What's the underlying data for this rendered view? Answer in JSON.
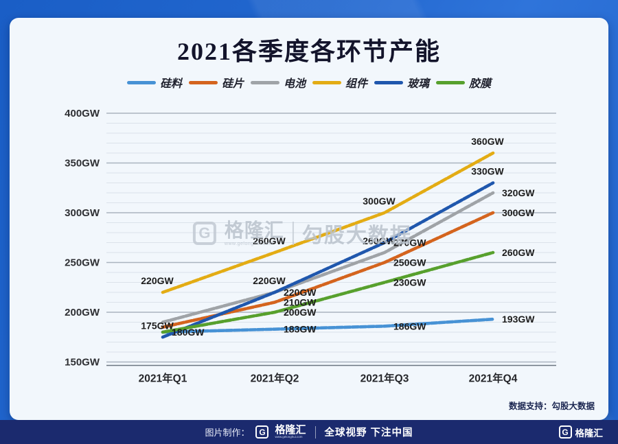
{
  "title": "2021各季度各环节产能",
  "watermark": {
    "logo_letter": "G",
    "brand": "格隆汇",
    "brand_sub": "www.gelonghui.com",
    "right_text": "勾股大数据"
  },
  "data_support": "数据支持：勾股大数据",
  "footer": {
    "made_by": "图片制作：",
    "logo_letter": "G",
    "brand": "格隆汇",
    "brand_sub": "www.gelonghui.com",
    "slogan": "全球视野 下注中国",
    "right_logo_letter": "G",
    "right_brand": "格隆汇"
  },
  "colors": {
    "frame_blue": "#2267cf",
    "card_bg": "#f2f7fc",
    "footer_navy": "#1b2a6e",
    "grid_minor": "#dbe2ea",
    "grid_major": "#a9b3bf",
    "axis_line": "#6a7480",
    "label_text": "#1c1c1c"
  },
  "chart_data": {
    "type": "line",
    "title": "2021各季度各环节产能",
    "categories": [
      "2021年Q1",
      "2021年Q2",
      "2021年Q3",
      "2021年Q4"
    ],
    "unit": "GW",
    "ylim": [
      150,
      400
    ],
    "y_tick_step": 50,
    "grid_minor_step": 10,
    "grid": true,
    "legend_position": "top",
    "y_tick_labels": [
      "150GW",
      "200GW",
      "250GW",
      "300GW",
      "350GW",
      "400GW"
    ],
    "series": [
      {
        "name": "硅料",
        "color": "#4792d5",
        "values": [
          180,
          183,
          186,
          193
        ],
        "point_labels": [
          "180GW",
          "183GW",
          "186GW",
          "193GW"
        ]
      },
      {
        "name": "硅片",
        "color": "#d4641e",
        "values": [
          185,
          210,
          250,
          300
        ],
        "point_labels": [
          null,
          "210GW",
          "250GW",
          "300GW"
        ]
      },
      {
        "name": "电池",
        "color": "#9fa3a7",
        "values": [
          190,
          220,
          260,
          320
        ],
        "point_labels": [
          null,
          "220GW",
          "260GW",
          "320GW"
        ]
      },
      {
        "name": "组件",
        "color": "#e3ac14",
        "values": [
          220,
          260,
          300,
          360
        ],
        "point_labels": [
          "220GW",
          "260GW",
          "300GW",
          "360GW"
        ]
      },
      {
        "name": "玻璃",
        "color": "#1f57ad",
        "values": [
          175,
          220,
          270,
          330
        ],
        "point_labels": [
          "175GW",
          "220GW",
          "270GW",
          "330GW"
        ]
      },
      {
        "name": "胶膜",
        "color": "#57a02d",
        "values": [
          180,
          200,
          230,
          260
        ],
        "point_labels": [
          null,
          "200GW",
          "230GW",
          "260GW"
        ]
      }
    ]
  }
}
